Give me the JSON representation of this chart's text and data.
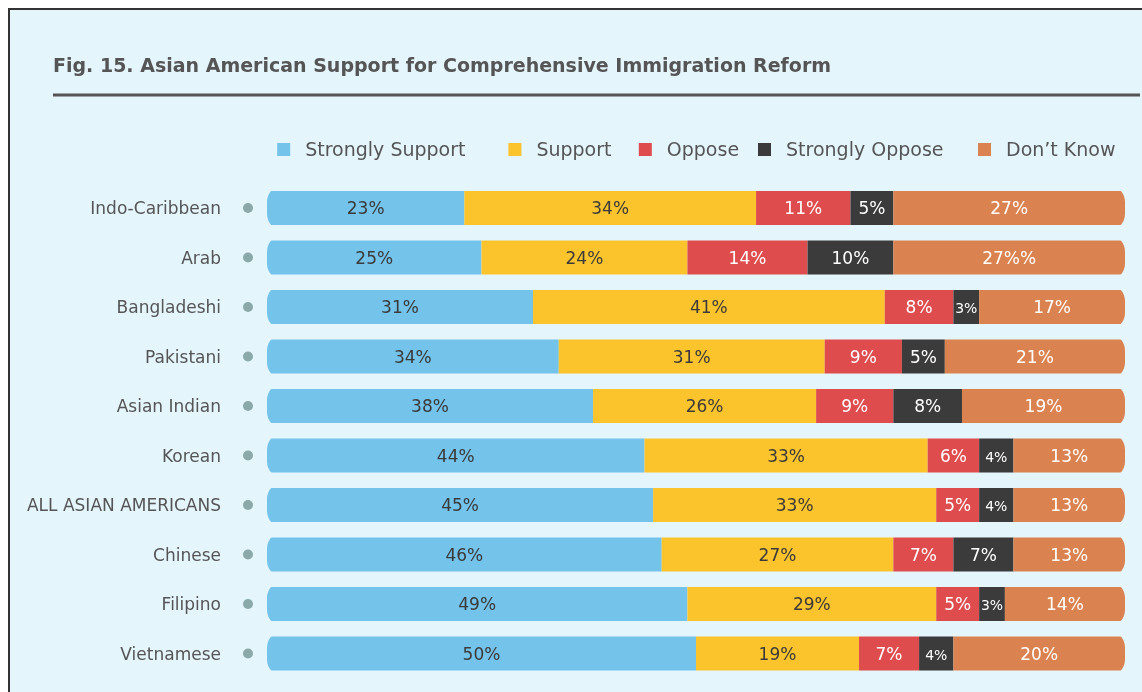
{
  "chart_data": {
    "type": "bar",
    "orientation": "horizontal",
    "stacked": true,
    "title": "Fig. 15. Asian American Support for Comprehensive Immigration Reform",
    "categories": [
      "Indo-Caribbean",
      "Arab",
      "Bangladeshi",
      "Pakistani",
      "Asian Indian",
      "Korean",
      "ALL ASIAN AMERICANS",
      "Chinese",
      "Filipino",
      "Vietnamese"
    ],
    "xlim": [
      0,
      100
    ],
    "legend": "top right",
    "series": [
      {
        "name": "Strongly Support",
        "color": "#74c3ea",
        "values": [
          23,
          25,
          31,
          34,
          38,
          44,
          45,
          46,
          49,
          50
        ],
        "value_labels": [
          "23%",
          "25%",
          "31%",
          "34%",
          "38%",
          "44%",
          "45%",
          "46%",
          "49%",
          "50%"
        ]
      },
      {
        "name": "Support",
        "color": "#fcc42c",
        "values": [
          34,
          24,
          41,
          31,
          26,
          33,
          33,
          27,
          29,
          19
        ],
        "value_labels": [
          "34%",
          "24%",
          "41%",
          "31%",
          "26%",
          "33%",
          "33%",
          "27%",
          "29%",
          "19%"
        ]
      },
      {
        "name": "Oppose",
        "color": "#de4c4d",
        "values": [
          11,
          14,
          8,
          9,
          9,
          6,
          5,
          7,
          5,
          7
        ],
        "value_labels": [
          "11%",
          "14%",
          "8%",
          "9%",
          "9%",
          "6%",
          "5%",
          "7%",
          "5%",
          "7%"
        ]
      },
      {
        "name": "Strongly Oppose",
        "color": "#3b3b3b",
        "values": [
          5,
          10,
          3,
          5,
          8,
          4,
          4,
          7,
          3,
          4
        ],
        "value_labels": [
          "5%",
          "10%",
          "3%",
          "5%",
          "8%",
          "4%",
          "4%",
          "7%",
          "3%",
          "4%"
        ]
      },
      {
        "name": "Don’t Know",
        "color": "#da8350",
        "values": [
          27,
          27,
          17,
          21,
          19,
          13,
          13,
          13,
          14,
          20
        ],
        "value_labels": [
          "27%",
          "27%%",
          "17%",
          "21%",
          "19%",
          "13%",
          "13%",
          "13%",
          "14%",
          "20%"
        ]
      }
    ]
  }
}
